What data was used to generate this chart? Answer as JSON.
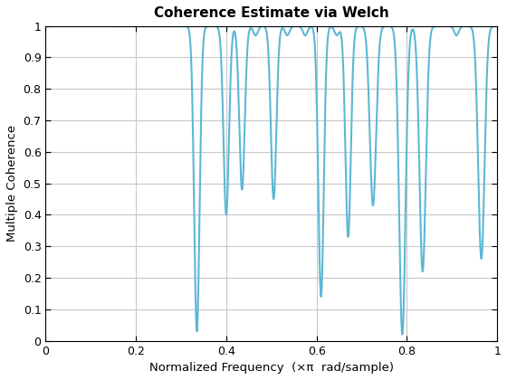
{
  "title": "Coherence Estimate via Welch",
  "xlabel": "Normalized Frequency  (×π  rad/sample)",
  "ylabel": "Multiple Coherence",
  "xlim": [
    0,
    1
  ],
  "ylim": [
    0,
    1
  ],
  "line_color": "#5BB8D4",
  "line_width": 1.5,
  "background_color": "#ffffff",
  "grid_color": "#c8c8c8",
  "xticks": [
    0,
    0.2,
    0.4,
    0.6,
    0.8,
    1.0
  ],
  "yticks": [
    0,
    0.1,
    0.2,
    0.3,
    0.4,
    0.5,
    0.6,
    0.7,
    0.8,
    0.9,
    1.0
  ],
  "dip_centers": [
    0.335,
    0.4,
    0.435,
    0.465,
    0.505,
    0.535,
    0.575,
    0.61,
    0.645,
    0.67,
    0.725,
    0.79,
    0.835,
    0.91,
    0.965
  ],
  "dip_minima": [
    0.03,
    0.4,
    0.48,
    0.97,
    0.45,
    0.97,
    0.97,
    0.14,
    0.97,
    0.33,
    0.43,
    0.02,
    0.22,
    0.97,
    0.26
  ],
  "dip_sigmas": [
    0.006,
    0.006,
    0.006,
    0.005,
    0.006,
    0.005,
    0.005,
    0.006,
    0.005,
    0.006,
    0.007,
    0.007,
    0.007,
    0.005,
    0.007
  ],
  "flat_level": 0.999,
  "n_points": 8000
}
